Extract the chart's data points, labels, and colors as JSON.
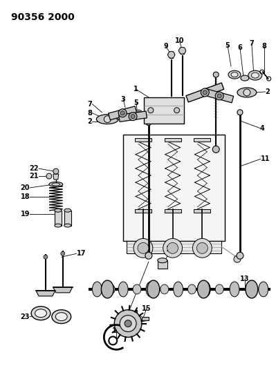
{
  "title": "90356 2000",
  "bg_color": "#ffffff",
  "line_color": "#000000",
  "gray1": "#888888",
  "gray2": "#aaaaaa",
  "gray3": "#cccccc",
  "gray4": "#444444",
  "title_fontsize": 10,
  "label_fontsize": 7
}
